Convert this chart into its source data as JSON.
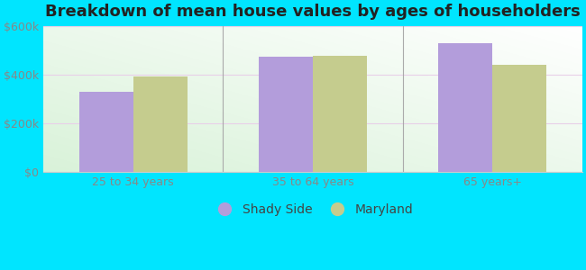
{
  "title": "Breakdown of mean house values by ages of householders",
  "categories": [
    "25 to 34 years",
    "35 to 64 years",
    "65 years+"
  ],
  "shady_side": [
    330000,
    475000,
    530000
  ],
  "maryland": [
    395000,
    480000,
    440000
  ],
  "shady_side_color": "#b39ddb",
  "maryland_color": "#c5cc8e",
  "ylim": [
    0,
    600000
  ],
  "yticks": [
    0,
    200000,
    400000,
    600000
  ],
  "ytick_labels": [
    "$0",
    "$200k",
    "$400k",
    "$600k"
  ],
  "background_outer": "#00e5ff",
  "legend_labels": [
    "Shady Side",
    "Maryland"
  ],
  "title_fontsize": 13,
  "tick_fontsize": 9,
  "legend_fontsize": 10
}
